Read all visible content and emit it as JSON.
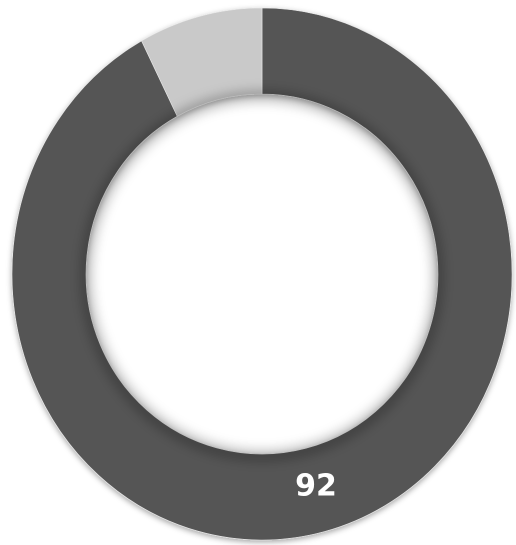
{
  "chart_data": {
    "type": "donut",
    "values": [
      92,
      8
    ],
    "colors": [
      "#555555",
      "#c9c9c9"
    ]
  }
}
